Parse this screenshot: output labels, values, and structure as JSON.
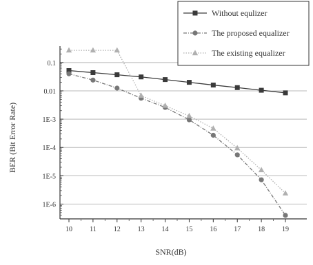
{
  "chart_data": {
    "type": "line",
    "x": [
      10,
      11,
      12,
      13,
      14,
      15,
      16,
      17,
      18,
      19
    ],
    "x_ticks": [
      "10",
      "11",
      "12",
      "13",
      "14",
      "15",
      "16",
      "17",
      "18",
      "19"
    ],
    "xlim": [
      9.8,
      19.2
    ],
    "ylim": [
      3e-07,
      0.38
    ],
    "yscale": "log",
    "y_ticks": [
      {
        "value": 0.1,
        "label": "0.1"
      },
      {
        "value": 0.01,
        "label": "0.01"
      },
      {
        "value": 0.001,
        "label": "1E-3"
      },
      {
        "value": 0.0001,
        "label": "1E-4"
      },
      {
        "value": 1e-05,
        "label": "1E-5"
      },
      {
        "value": 1e-06,
        "label": "1E-6"
      }
    ],
    "xlabel": "SNR(dB)",
    "ylabel": "BER (Bit Error Rate)",
    "grid": "horizontal",
    "legend_position": "top-right",
    "series": [
      {
        "name": "Without equlizer",
        "marker": "square",
        "color": "#3a3a3a",
        "line_style": "solid",
        "values": [
          0.052,
          0.044,
          0.037,
          0.031,
          0.025,
          0.02,
          0.016,
          0.013,
          0.0105,
          0.0085
        ]
      },
      {
        "name": "The proposed equalizer",
        "marker": "circle",
        "color": "#777777",
        "line_style": "dashdot",
        "values": [
          0.04,
          0.024,
          0.0125,
          0.0055,
          0.0026,
          0.00095,
          0.00027,
          5.5e-05,
          7.2e-06,
          4e-07
        ]
      },
      {
        "name": "The existing equalizer",
        "marker": "triangle",
        "color": "#b0b0b0",
        "line_style": "dotted",
        "values": [
          0.27,
          0.27,
          0.27,
          0.0068,
          0.003,
          0.0013,
          0.00047,
          9.5e-05,
          1.6e-05,
          2.4e-06
        ]
      }
    ]
  }
}
